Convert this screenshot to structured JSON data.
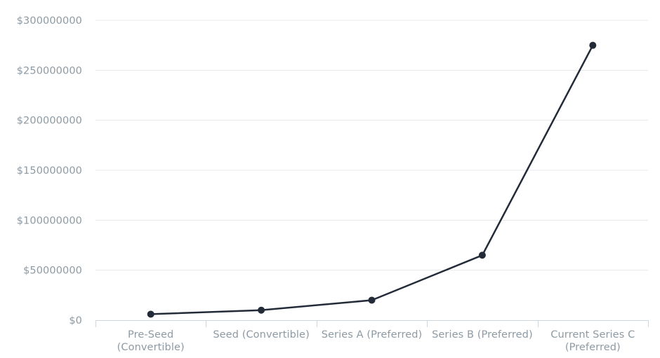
{
  "chart_data": {
    "type": "line",
    "title": "",
    "xlabel": "",
    "ylabel": "",
    "categories": [
      [
        "Pre-Seed",
        "(Convertible)"
      ],
      [
        "Seed (Convertible)"
      ],
      [
        "Series A (Preferred)"
      ],
      [
        "Series B (Preferred)"
      ],
      [
        "Current Series C",
        "(Preferred)"
      ]
    ],
    "series": [
      {
        "values": [
          6000000,
          10000000,
          20000000,
          65000000,
          275000000
        ]
      }
    ],
    "ylim": [
      0,
      300000000
    ],
    "y_ticks": [
      0,
      50000000,
      100000000,
      150000000,
      200000000,
      250000000,
      300000000
    ],
    "y_tick_labels": [
      "$0",
      "$50000000",
      "$100000000",
      "$150000000",
      "$200000000",
      "$250000000",
      "$300000000"
    ],
    "grid": true,
    "legend": "none",
    "colors": {
      "line": "#232b38",
      "marker": "#232b38",
      "grid": "#e4e8ec",
      "text": "#8e9aa3"
    }
  }
}
